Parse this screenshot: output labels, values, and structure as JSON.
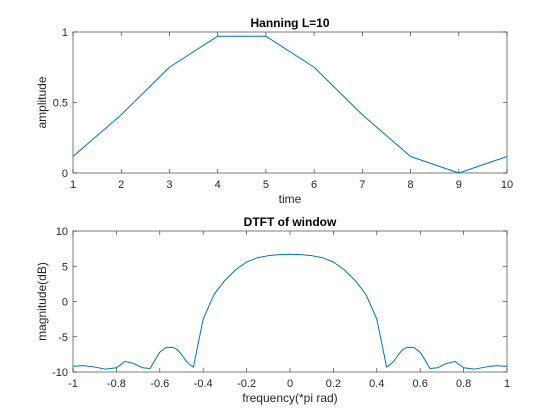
{
  "chart_data": [
    {
      "type": "line",
      "title": "Hanning L=10",
      "xlabel": "time",
      "ylabel": "amplitude",
      "xlim": [
        1,
        10
      ],
      "ylim": [
        0,
        1
      ],
      "xticks": [
        1,
        2,
        3,
        4,
        5,
        6,
        7,
        8,
        9,
        10
      ],
      "yticks": [
        0,
        0.5,
        1
      ],
      "grid": false,
      "line_color": "#0072BD",
      "series": [
        {
          "x": [
            1,
            2,
            3,
            4,
            5,
            6,
            7,
            8,
            9,
            10
          ],
          "values": [
            0.117,
            0.413,
            0.75,
            0.97,
            0.97,
            0.75,
            0.413,
            0.117,
            0.0,
            0.117
          ]
        }
      ]
    },
    {
      "type": "line",
      "title": "DTFT of window",
      "xlabel": "frequency(*pi rad)",
      "ylabel": "magnitude(dB)",
      "xlim": [
        -1,
        1
      ],
      "ylim": [
        -10,
        10
      ],
      "xticks": [
        -1,
        -0.8,
        -0.6,
        -0.4,
        -0.2,
        0,
        0.2,
        0.4,
        0.6,
        0.8,
        1
      ],
      "yticks": [
        -10,
        -5,
        0,
        5,
        10
      ],
      "grid": false,
      "line_color": "#0072BD",
      "series": [
        {
          "x": [
            -1.0,
            -0.95,
            -0.9,
            -0.85,
            -0.8,
            -0.76,
            -0.72,
            -0.68,
            -0.645,
            -0.62,
            -0.6,
            -0.57,
            -0.54,
            -0.52,
            -0.5,
            -0.48,
            -0.46,
            -0.445,
            -0.43,
            -0.4,
            -0.35,
            -0.3,
            -0.25,
            -0.2,
            -0.15,
            -0.1,
            -0.05,
            0.0,
            0.05,
            0.1,
            0.15,
            0.2,
            0.25,
            0.3,
            0.35,
            0.4,
            0.43,
            0.445,
            0.46,
            0.48,
            0.5,
            0.52,
            0.54,
            0.57,
            0.6,
            0.62,
            0.645,
            0.68,
            0.72,
            0.76,
            0.8,
            0.85,
            0.9,
            0.95,
            1.0
          ],
          "values": [
            -9.2,
            -9.1,
            -9.3,
            -9.6,
            -9.4,
            -8.5,
            -8.8,
            -9.4,
            -9.5,
            -8.2,
            -7.2,
            -6.5,
            -6.5,
            -6.8,
            -7.5,
            -8.4,
            -9.0,
            -9.3,
            -7.0,
            -2.5,
            1.0,
            3.0,
            4.5,
            5.6,
            6.2,
            6.5,
            6.65,
            6.7,
            6.65,
            6.5,
            6.2,
            5.6,
            4.5,
            3.0,
            1.0,
            -2.5,
            -7.0,
            -9.3,
            -9.0,
            -8.4,
            -7.5,
            -6.8,
            -6.5,
            -6.5,
            -7.2,
            -8.2,
            -9.5,
            -9.4,
            -8.8,
            -8.5,
            -9.4,
            -9.6,
            -9.3,
            -9.1,
            -9.2
          ]
        }
      ]
    }
  ]
}
